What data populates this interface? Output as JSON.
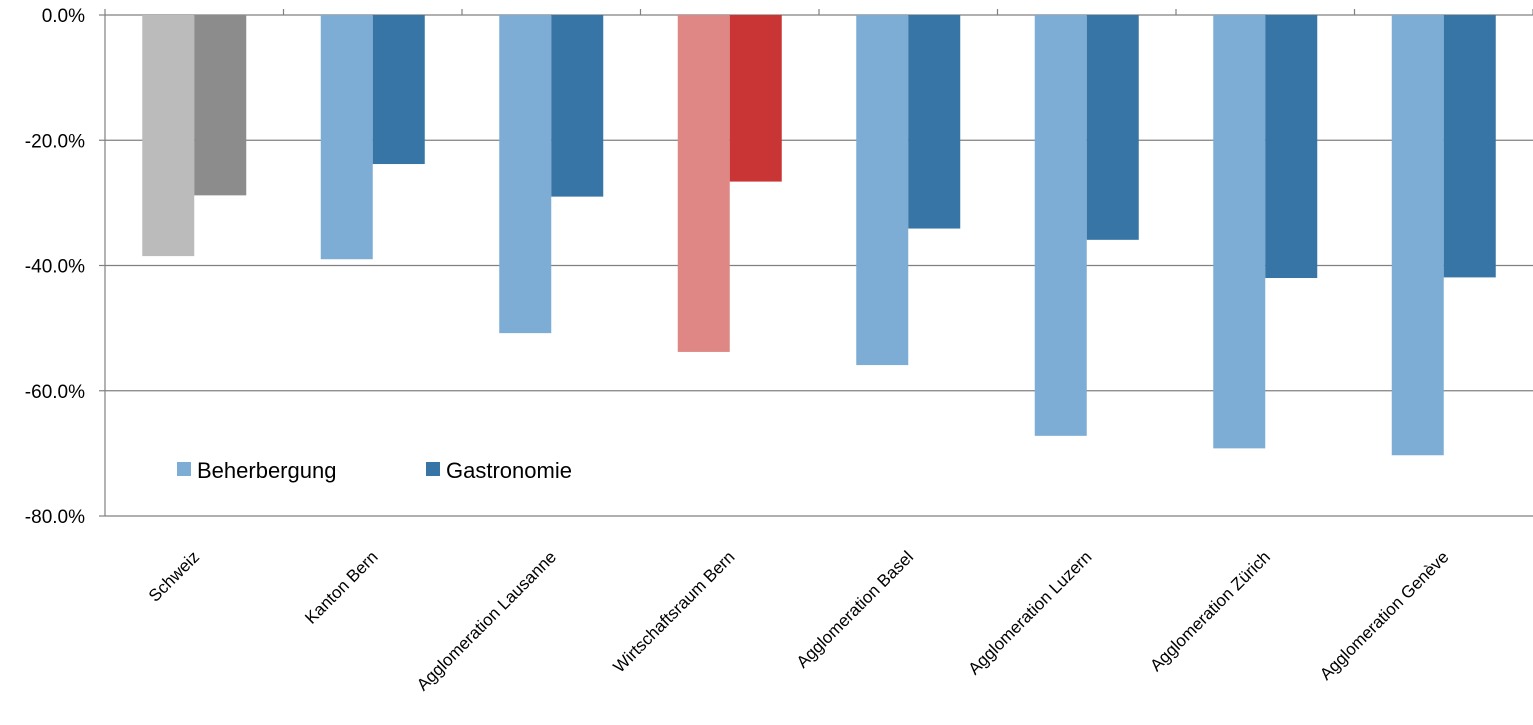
{
  "chart_data": {
    "type": "bar",
    "categories": [
      "Schweiz",
      "Kanton Bern",
      "Agglomeration Lausanne",
      "Wirtschaftsraum Bern",
      "Agglomeration Basel",
      "Agglomeration Luzern",
      "Agglomeration Zürich",
      "Agglomeration Genève"
    ],
    "series": [
      {
        "name": "Beherbergung",
        "values": [
          -38.5,
          -39.0,
          -50.8,
          -53.8,
          -55.9,
          -67.2,
          -69.2,
          -70.3
        ],
        "color": "#7dadd4",
        "point_colors": [
          "#bbbbbb",
          "#7dadd4",
          "#7dadd4",
          "#de8784",
          "#7dadd4",
          "#7dadd4",
          "#7dadd4",
          "#7dadd4"
        ]
      },
      {
        "name": "Gastronomie",
        "values": [
          -28.8,
          -23.8,
          -29.0,
          -26.6,
          -34.1,
          -35.9,
          -42.0,
          -41.9
        ],
        "color": "#3775a6",
        "point_colors": [
          "#8c8c8c",
          "#3775a6",
          "#3775a6",
          "#c93535",
          "#3775a6",
          "#3775a6",
          "#3775a6",
          "#3775a6"
        ]
      }
    ],
    "ylim": [
      -80,
      0
    ],
    "yticks": [
      0,
      -20,
      -40,
      -60,
      -80
    ],
    "ytick_labels": [
      "0.0%",
      "-20.0%",
      "-40.0%",
      "-60.0%",
      "-80.0%"
    ],
    "grid": true,
    "legend_position": "bottom-left inside plot",
    "title": "",
    "xlabel": "",
    "ylabel": ""
  }
}
